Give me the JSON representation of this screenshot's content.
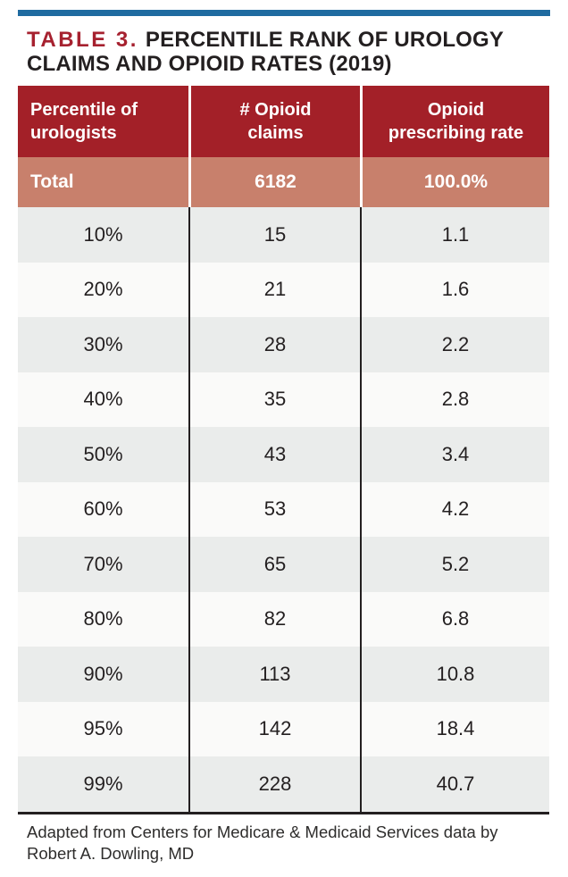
{
  "page": {
    "title_label": "TABLE 3.",
    "title_line1": "PERCENTILE RANK OF UROLOGY",
    "title_line2": "CLAIMS AND OPIOID RATES (2019)"
  },
  "table": {
    "headers": {
      "col1": "Percentile of urologists",
      "col2": "# Opioid claims",
      "col3": "Opioid prescribing rate"
    },
    "total": {
      "label": "Total",
      "claims": "6182",
      "rate": "100.0%"
    },
    "rows": [
      {
        "percentile": "10%",
        "claims": "15",
        "rate": "1.1"
      },
      {
        "percentile": "20%",
        "claims": "21",
        "rate": "1.6"
      },
      {
        "percentile": "30%",
        "claims": "28",
        "rate": "2.2"
      },
      {
        "percentile": "40%",
        "claims": "35",
        "rate": "2.8"
      },
      {
        "percentile": "50%",
        "claims": "43",
        "rate": "3.4"
      },
      {
        "percentile": "60%",
        "claims": "53",
        "rate": "4.2"
      },
      {
        "percentile": "70%",
        "claims": "65",
        "rate": "5.2"
      },
      {
        "percentile": "80%",
        "claims": "82",
        "rate": "6.8"
      },
      {
        "percentile": "90%",
        "claims": "113",
        "rate": "10.8"
      },
      {
        "percentile": "95%",
        "claims": "142",
        "rate": "18.4"
      },
      {
        "percentile": "99%",
        "claims": "228",
        "rate": "40.7"
      }
    ]
  },
  "footer": {
    "line1": "Adapted from Centers for Medicare & Medicaid Services data by",
    "line2": "Robert A. Dowling, MD"
  },
  "colors": {
    "accent_bar_blue": "#1f6ba0",
    "header_red": "#a32028",
    "title_red": "#a6212f",
    "total_salmon": "#c8806c",
    "row_gray": "#eaeceb",
    "row_light": "#fafaf9",
    "text_dark": "#231f20"
  },
  "chart_data": {
    "type": "table",
    "title": "TABLE 3. PERCENTILE RANK OF UROLOGY CLAIMS AND OPIOID RATES (2019)",
    "columns": [
      "Percentile of urologists",
      "# Opioid claims",
      "Opioid prescribing rate"
    ],
    "rows": [
      [
        "Total",
        6182,
        "100.0%"
      ],
      [
        "10%",
        15,
        1.1
      ],
      [
        "20%",
        21,
        1.6
      ],
      [
        "30%",
        28,
        2.2
      ],
      [
        "40%",
        35,
        2.8
      ],
      [
        "50%",
        43,
        3.4
      ],
      [
        "60%",
        53,
        4.2
      ],
      [
        "70%",
        65,
        5.2
      ],
      [
        "80%",
        82,
        6.8
      ],
      [
        "90%",
        113,
        10.8
      ],
      [
        "95%",
        142,
        18.4
      ],
      [
        "99%",
        228,
        40.7
      ]
    ],
    "note": "Adapted from Centers for Medicare & Medicaid Services data by Robert A. Dowling, MD"
  }
}
